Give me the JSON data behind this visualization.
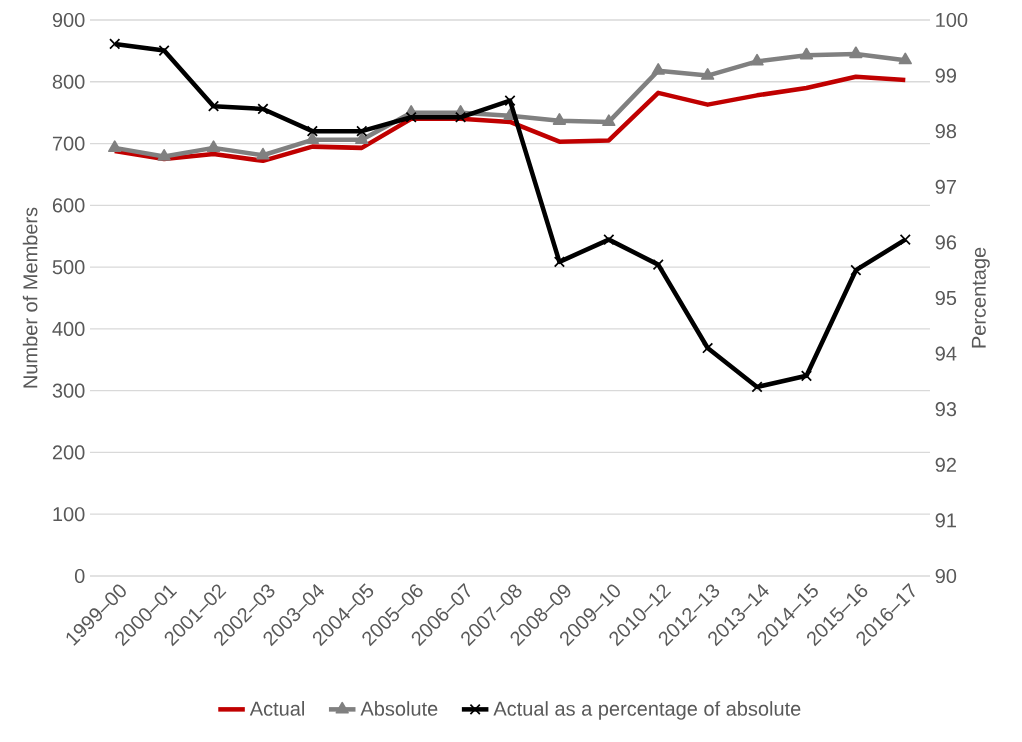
{
  "chart_data": {
    "type": "line",
    "categories": [
      "1999–00",
      "2000–01",
      "2001–02",
      "2002–03",
      "2003–04",
      "2004–05",
      "2005–06",
      "2006–07",
      "2007–08",
      "2008–09",
      "2009–10",
      "2010–12",
      "2012–13",
      "2013–14",
      "2014–15",
      "2015–16",
      "2016–17"
    ],
    "series": [
      {
        "name": "Actual",
        "color": "#c00000",
        "marker": "none",
        "values": [
          688,
          675,
          683,
          672,
          695,
          693,
          740,
          740,
          735,
          703,
          705,
          782,
          763,
          778,
          790,
          808,
          803
        ]
      },
      {
        "name": "Absolute",
        "color": "#808080",
        "marker": "triangle",
        "values": [
          693,
          679,
          693,
          681,
          706,
          706,
          750,
          750,
          745,
          737,
          735,
          818,
          810,
          833,
          843,
          845,
          835
        ]
      },
      {
        "name": "Actual as a percentage of absolute",
        "color": "#000000",
        "marker": "cross",
        "axis": "y2",
        "values": [
          99.57,
          99.45,
          98.45,
          98.4,
          98.0,
          98.0,
          98.25,
          98.25,
          98.55,
          95.65,
          96.05,
          95.6,
          94.1,
          93.4,
          93.6,
          95.5,
          96.05
        ]
      }
    ],
    "ylabel": "Number of Members",
    "y2label": "Percentage",
    "ylim": [
      0,
      900
    ],
    "yticks": [
      0,
      100,
      200,
      300,
      400,
      500,
      600,
      700,
      800,
      900
    ],
    "y2lim": [
      90,
      100
    ],
    "y2ticks": [
      90,
      91,
      92,
      93,
      94,
      95,
      96,
      97,
      98,
      99,
      100
    ],
    "grid": "y",
    "legend": "bottom"
  }
}
